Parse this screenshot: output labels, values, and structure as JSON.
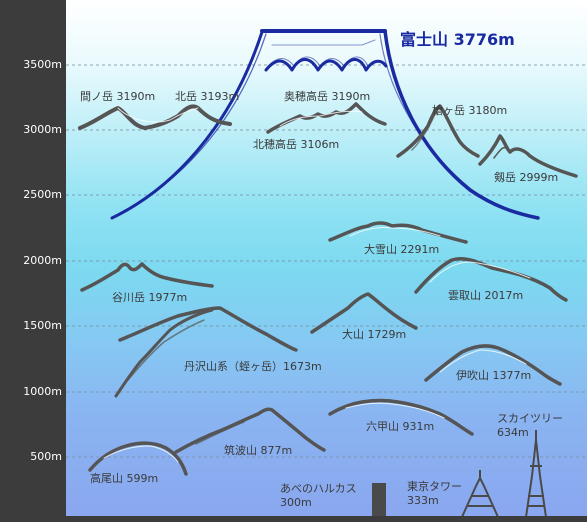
{
  "axis": {
    "ticks": [
      "3500m",
      "3000m",
      "2500m",
      "2000m",
      "1500m",
      "1000m",
      "500m"
    ]
  },
  "title": "富士山 3776m",
  "labels": {
    "ainodake": "間ノ岳 3190m",
    "kitadake": "北岳 3193m",
    "okuhotaka": "奥穂高岳 3190m",
    "kitahotaka": "北穂高岳 3106m",
    "yarigatake": "槍ヶ岳 3180m",
    "tsurugi": "剱岳 2999m",
    "daisetsu": "大雪山 2291m",
    "tanigawa": "谷川岳 1977m",
    "unryu": "雲取山 2017m",
    "oyama": "大山 1729m",
    "tanzawa": "丹沢山系（蛭ヶ岳）1673m",
    "ibuki": "伊吹山 1377m",
    "rokko": "六甲山 931m",
    "tsukuba": "筑波山 877m",
    "takao": "高尾山 599m",
    "skytree_name": "スカイツリー",
    "skytree_height": "634m",
    "tokyotower_name": "東京タワー",
    "tokyotower_height": "333m",
    "abeno_name": "あべのハルカス",
    "abeno_height": "300m"
  },
  "colors": {
    "fuji": "#1a2aa0",
    "mountain": "#555555",
    "grid": "#7a8fa0",
    "axis_panel": "#3c3c3c"
  }
}
